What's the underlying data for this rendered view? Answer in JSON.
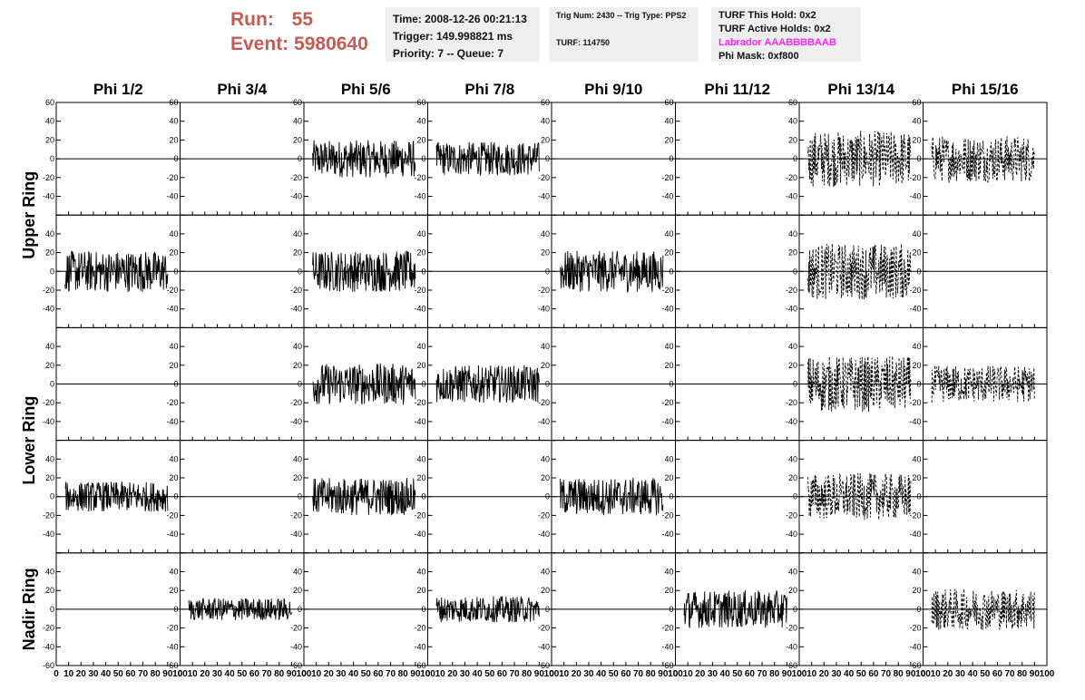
{
  "header": {
    "run_label": "Run:",
    "run_value": "55",
    "event_label": "Event:",
    "event_value": "5980640",
    "time": "Time: 2008-12-26 00:21:13",
    "trigger": "Trigger: 149.998821 ms",
    "priority": "Priority: 7 -- Queue: 7",
    "trig_num": "Trig Num: 2430 -- Trig Type: PPS2",
    "turf": "TURF: 114750",
    "turf_hold": "TURF This Hold: 0x2",
    "turf_active": "TURF Active Holds: 0x2",
    "labrador": "Labrador AAABBBBAAB",
    "phi_mask": "Phi Mask: 0xf800"
  },
  "colors": {
    "title_red": "#c85a55",
    "labrador_magenta": "#ff22ff",
    "panel_bg": "#efefef"
  },
  "chart_data": {
    "type": "line",
    "columns": [
      "Phi 1/2",
      "Phi 3/4",
      "Phi 5/6",
      "Phi 7/8",
      "Phi 9/10",
      "Phi 11/12",
      "Phi 13/14",
      "Phi 15/16"
    ],
    "rows": [
      "Upper Ring",
      "Lower Ring",
      "Nadir Ring"
    ],
    "xlim": [
      0,
      100
    ],
    "ylim": [
      -60,
      60
    ],
    "x_ticks": [
      0,
      10,
      20,
      30,
      40,
      50,
      60,
      70,
      80,
      90,
      100
    ],
    "x_tick_labels": [
      "0",
      "10",
      "20",
      "30",
      "40",
      "50",
      "60",
      "70",
      "80",
      "90",
      "100"
    ],
    "y_ticks": [
      60,
      40,
      20,
      0,
      -20,
      -40,
      -60
    ],
    "y_tick_labels": [
      "60",
      "40",
      "20",
      "0",
      "-20",
      "-40",
      "-60"
    ],
    "panels": [
      {
        "row": 0,
        "col": 0,
        "style": "flat"
      },
      {
        "row": 0,
        "col": 1,
        "style": "flat"
      },
      {
        "row": 0,
        "col": 2,
        "style": "solid",
        "amplitude": 20
      },
      {
        "row": 0,
        "col": 3,
        "style": "solid",
        "amplitude": 18
      },
      {
        "row": 0,
        "col": 4,
        "style": "flat"
      },
      {
        "row": 0,
        "col": 5,
        "style": "flat"
      },
      {
        "row": 0,
        "col": 6,
        "style": "dashed",
        "amplitude": 30
      },
      {
        "row": 0,
        "col": 7,
        "style": "dashed",
        "amplitude": 25
      },
      {
        "row": 1,
        "col": 0,
        "style": "solid",
        "amplitude": 22
      },
      {
        "row": 1,
        "col": 1,
        "style": "flat"
      },
      {
        "row": 1,
        "col": 2,
        "style": "solid",
        "amplitude": 22
      },
      {
        "row": 1,
        "col": 3,
        "style": "flat"
      },
      {
        "row": 1,
        "col": 4,
        "style": "solid",
        "amplitude": 22
      },
      {
        "row": 1,
        "col": 5,
        "style": "flat"
      },
      {
        "row": 1,
        "col": 6,
        "style": "dashed",
        "amplitude": 30
      },
      {
        "row": 1,
        "col": 7,
        "style": "flat"
      },
      {
        "row": 2,
        "col": 0,
        "style": "flat"
      },
      {
        "row": 2,
        "col": 1,
        "style": "flat"
      },
      {
        "row": 2,
        "col": 2,
        "style": "solid",
        "amplitude": 22
      },
      {
        "row": 2,
        "col": 3,
        "style": "solid",
        "amplitude": 20
      },
      {
        "row": 2,
        "col": 4,
        "style": "flat"
      },
      {
        "row": 2,
        "col": 5,
        "style": "flat"
      },
      {
        "row": 2,
        "col": 6,
        "style": "dashed",
        "amplitude": 30
      },
      {
        "row": 2,
        "col": 7,
        "style": "dashed",
        "amplitude": 20
      },
      {
        "row": 3,
        "col": 0,
        "style": "solid",
        "amplitude": 16
      },
      {
        "row": 3,
        "col": 1,
        "style": "flat"
      },
      {
        "row": 3,
        "col": 2,
        "style": "solid",
        "amplitude": 20
      },
      {
        "row": 3,
        "col": 3,
        "style": "flat"
      },
      {
        "row": 3,
        "col": 4,
        "style": "solid",
        "amplitude": 20
      },
      {
        "row": 3,
        "col": 5,
        "style": "flat"
      },
      {
        "row": 3,
        "col": 6,
        "style": "dashed",
        "amplitude": 25
      },
      {
        "row": 3,
        "col": 7,
        "style": "flat"
      },
      {
        "row": 4,
        "col": 0,
        "style": "flat"
      },
      {
        "row": 4,
        "col": 1,
        "style": "solid",
        "amplitude": 12
      },
      {
        "row": 4,
        "col": 2,
        "style": "flat"
      },
      {
        "row": 4,
        "col": 3,
        "style": "solid",
        "amplitude": 14
      },
      {
        "row": 4,
        "col": 4,
        "style": "flat"
      },
      {
        "row": 4,
        "col": 5,
        "style": "solid",
        "amplitude": 20
      },
      {
        "row": 4,
        "col": 6,
        "style": "flat"
      },
      {
        "row": 4,
        "col": 7,
        "style": "dashed",
        "amplitude": 22
      }
    ]
  }
}
